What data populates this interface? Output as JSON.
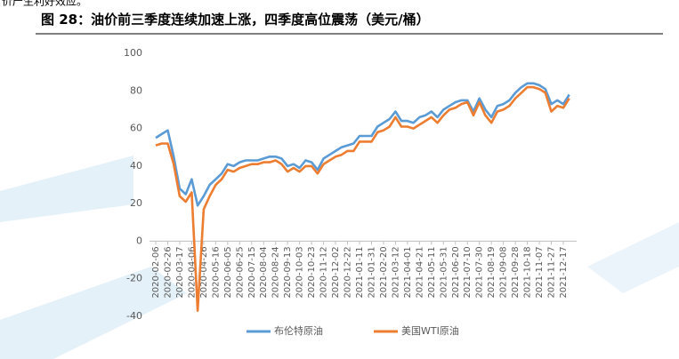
{
  "page_top_text": "价产生利好效应。",
  "chart_data": {
    "type": "line",
    "title": "图 28：油价前三季度连续加速上涨，四季度高位震荡（美元/桶）",
    "categories": [
      "2020-02-06",
      null,
      "2020-02-26",
      null,
      "2020-03-17",
      null,
      "2020-04-06",
      null,
      "2020-04-26",
      null,
      "2020-05-16",
      null,
      "2020-06-05",
      null,
      "2020-06-25",
      null,
      "2020-07-15",
      null,
      "2020-08-04",
      null,
      "2020-08-24",
      null,
      "2020-09-13",
      null,
      "2020-10-03",
      null,
      "2020-10-23",
      null,
      "2020-11-12",
      null,
      "2020-12-02",
      null,
      "2020-12-22",
      null,
      "2021-01-11",
      null,
      "2021-01-31",
      null,
      "2021-02-20",
      null,
      "2021-03-12",
      null,
      "2021-04-01",
      null,
      "2021-04-21",
      null,
      "2021-05-11",
      null,
      "2021-05-31",
      null,
      "2021-06-20",
      null,
      "2021-07-10",
      null,
      "2021-07-30",
      null,
      "2021-08-19",
      null,
      "2021-09-08",
      null,
      "2021-09-28",
      null,
      "2021-10-18",
      null,
      "2021-11-07",
      null,
      "2021-11-27",
      null,
      "2021-12-17",
      null
    ],
    "series": [
      {
        "name": "布伦特原油",
        "color": "#5b9bd5",
        "values": [
          55,
          57,
          59,
          45,
          28,
          25,
          33,
          19,
          24,
          30,
          33,
          36,
          41,
          40,
          42,
          43,
          43,
          43,
          44,
          45,
          45,
          44,
          40,
          41,
          39,
          43,
          42,
          38,
          44,
          46,
          48,
          50,
          51,
          52,
          56,
          56,
          56,
          61,
          63,
          65,
          69,
          64,
          64,
          63,
          66,
          67,
          69,
          66,
          70,
          72,
          74,
          75,
          75,
          69,
          76,
          70,
          66,
          72,
          73,
          75,
          79,
          82,
          84,
          84,
          83,
          81,
          73,
          75,
          73,
          78
        ]
      },
      {
        "name": "美国WTI原油",
        "color": "#ed7d31",
        "values": [
          51,
          52,
          52,
          41,
          24,
          21,
          26,
          -37,
          17,
          24,
          30,
          33,
          38,
          37,
          39,
          40,
          41,
          41,
          42,
          42,
          43,
          41,
          37,
          39,
          37,
          40,
          40,
          36,
          41,
          43,
          45,
          46,
          48,
          48,
          53,
          53,
          53,
          58,
          59,
          61,
          66,
          61,
          61,
          60,
          62,
          64,
          66,
          63,
          67,
          70,
          71,
          73,
          74,
          67,
          74,
          67,
          63,
          69,
          70,
          72,
          76,
          79,
          82,
          82,
          81,
          79,
          69,
          72,
          71,
          76
        ]
      }
    ],
    "ylim": [
      -40,
      100
    ],
    "yticks": [
      -40,
      -20,
      0,
      20,
      40,
      60,
      80,
      100
    ],
    "grid": false,
    "legend": "bottom"
  }
}
